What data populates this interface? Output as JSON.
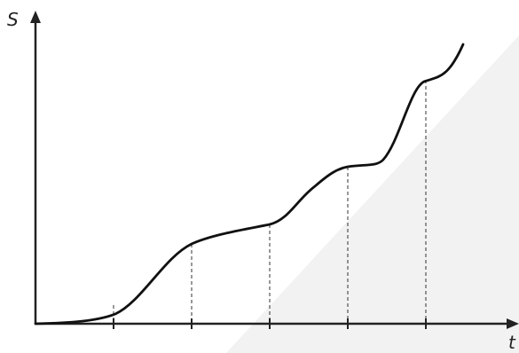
{
  "axes": {
    "y_label": "S",
    "x_label": "t"
  }
}
